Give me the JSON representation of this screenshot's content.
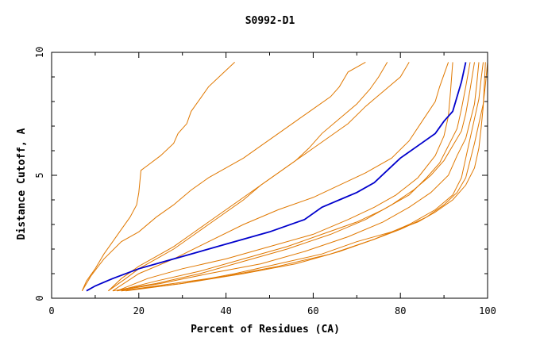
{
  "chart_data": {
    "type": "line",
    "title": "S0992-D1",
    "xlabel": "Percent of Residues (CA)",
    "ylabel": "Distance Cutoff, A",
    "xlim": [
      0,
      100
    ],
    "ylim": [
      0,
      10
    ],
    "x_ticks": [
      "0",
      "20",
      "40",
      "60",
      "80",
      "100"
    ],
    "y_ticks": [
      "0",
      "5",
      "10"
    ],
    "grid": false,
    "colors": {
      "highlight": "#0000cc",
      "others": "#e07800",
      "axes": "#000000"
    },
    "series": [
      {
        "highlight": true,
        "x": [
          8,
          10,
          14,
          20,
          26,
          32,
          40,
          50,
          58,
          62,
          66,
          70,
          74,
          77,
          80,
          84,
          88,
          90,
          92,
          93,
          94,
          95
        ],
        "y": [
          0.3,
          0.5,
          0.8,
          1.2,
          1.5,
          1.8,
          2.2,
          2.7,
          3.2,
          3.7,
          4.0,
          4.3,
          4.7,
          5.2,
          5.7,
          6.2,
          6.7,
          7.2,
          7.6,
          8.2,
          8.8,
          9.6
        ]
      },
      {
        "highlight": false,
        "x": [
          7,
          8,
          10,
          12,
          14,
          16,
          18,
          19.5,
          20,
          20.5,
          22,
          25,
          28,
          29,
          31,
          32,
          34,
          36,
          39,
          42
        ],
        "y": [
          0.3,
          0.7,
          1.2,
          1.8,
          2.3,
          2.8,
          3.3,
          3.8,
          4.3,
          5.2,
          5.4,
          5.8,
          6.3,
          6.7,
          7.1,
          7.6,
          8.1,
          8.6,
          9.1,
          9.6
        ]
      },
      {
        "highlight": false,
        "x": [
          7,
          9,
          12,
          16,
          20,
          24,
          28,
          32,
          36,
          40,
          44,
          48,
          52,
          56,
          60,
          64,
          66,
          68,
          72
        ],
        "y": [
          0.3,
          0.9,
          1.6,
          2.3,
          2.7,
          3.3,
          3.8,
          4.4,
          4.9,
          5.3,
          5.7,
          6.2,
          6.7,
          7.2,
          7.7,
          8.2,
          8.6,
          9.2,
          9.6
        ]
      },
      {
        "highlight": false,
        "x": [
          13,
          16,
          20,
          24,
          28,
          32,
          36,
          40,
          44,
          48,
          52,
          56,
          60,
          64,
          68,
          72,
          76,
          80,
          82
        ],
        "y": [
          0.3,
          0.8,
          1.3,
          1.7,
          2.1,
          2.6,
          3.1,
          3.6,
          4.1,
          4.6,
          5.1,
          5.6,
          6.1,
          6.6,
          7.1,
          7.8,
          8.4,
          9.0,
          9.6
        ]
      },
      {
        "highlight": false,
        "x": [
          13,
          17,
          20,
          24,
          28,
          32,
          36,
          40,
          44,
          48,
          52,
          56,
          59,
          62,
          66,
          70,
          73,
          75,
          77
        ],
        "y": [
          0.3,
          0.8,
          1.2,
          1.6,
          2.0,
          2.5,
          3.0,
          3.5,
          4.0,
          4.6,
          5.1,
          5.6,
          6.1,
          6.7,
          7.3,
          7.9,
          8.5,
          9.0,
          9.6
        ]
      },
      {
        "highlight": false,
        "x": [
          14,
          20,
          28,
          36,
          44,
          52,
          60,
          66,
          72,
          78,
          82,
          85,
          88,
          89,
          90,
          91
        ],
        "y": [
          0.3,
          1.0,
          1.6,
          2.3,
          3.0,
          3.6,
          4.1,
          4.6,
          5.1,
          5.7,
          6.4,
          7.2,
          8.0,
          8.6,
          9.1,
          9.6
        ]
      },
      {
        "highlight": false,
        "x": [
          15,
          22,
          30,
          40,
          50,
          60,
          68,
          74,
          79,
          84,
          88,
          90,
          91,
          91.5,
          92
        ],
        "y": [
          0.3,
          0.8,
          1.2,
          1.6,
          2.1,
          2.6,
          3.2,
          3.7,
          4.2,
          4.9,
          5.8,
          6.6,
          7.4,
          8.4,
          9.6
        ]
      },
      {
        "highlight": false,
        "x": [
          15,
          24,
          34,
          44,
          54,
          62,
          70,
          76,
          82,
          86,
          89,
          91,
          93,
          94,
          95,
          96
        ],
        "y": [
          0.3,
          0.7,
          1.1,
          1.6,
          2.1,
          2.6,
          3.1,
          3.6,
          4.2,
          4.9,
          5.5,
          6.2,
          6.9,
          7.7,
          8.6,
          9.6
        ]
      },
      {
        "highlight": false,
        "x": [
          14,
          24,
          34,
          44,
          54,
          64,
          72,
          78,
          83,
          87,
          90,
          92,
          94,
          95,
          96,
          97
        ],
        "y": [
          0.3,
          0.6,
          1.0,
          1.5,
          2.0,
          2.6,
          3.2,
          3.8,
          4.4,
          5.0,
          5.6,
          6.2,
          6.8,
          7.5,
          8.5,
          9.6
        ]
      },
      {
        "highlight": false,
        "x": [
          15,
          25,
          36,
          48,
          58,
          68,
          76,
          82,
          87,
          91,
          93,
          95,
          96,
          97,
          97.5,
          98
        ],
        "y": [
          0.3,
          0.6,
          1.0,
          1.4,
          1.9,
          2.5,
          3.1,
          3.7,
          4.3,
          5.0,
          5.8,
          6.5,
          7.2,
          7.9,
          8.7,
          9.6
        ]
      },
      {
        "highlight": false,
        "x": [
          16,
          28,
          40,
          52,
          64,
          74,
          82,
          88,
          92,
          94,
          95,
          96,
          97,
          98,
          98.5,
          99
        ],
        "y": [
          0.3,
          0.6,
          0.9,
          1.3,
          1.8,
          2.4,
          3.0,
          3.6,
          4.2,
          4.9,
          5.7,
          6.5,
          7.3,
          8.1,
          8.9,
          9.6
        ]
      },
      {
        "highlight": false,
        "x": [
          16,
          30,
          44,
          56,
          66,
          74,
          80,
          86,
          90,
          93,
          95,
          96,
          97,
          98,
          99,
          99.5,
          100
        ],
        "y": [
          0.3,
          0.6,
          1.0,
          1.4,
          1.9,
          2.4,
          2.8,
          3.3,
          3.8,
          4.3,
          4.9,
          5.6,
          6.3,
          7.1,
          7.9,
          8.7,
          9.6
        ]
      },
      {
        "highlight": false,
        "x": [
          17,
          30,
          42,
          52,
          62,
          70,
          78,
          84,
          88,
          92,
          95,
          97,
          98,
          98.5,
          99,
          99.5
        ],
        "y": [
          0.3,
          0.6,
          1.0,
          1.4,
          1.8,
          2.3,
          2.7,
          3.1,
          3.5,
          4.0,
          4.6,
          5.3,
          6.1,
          6.9,
          7.8,
          9.6
        ]
      }
    ]
  }
}
